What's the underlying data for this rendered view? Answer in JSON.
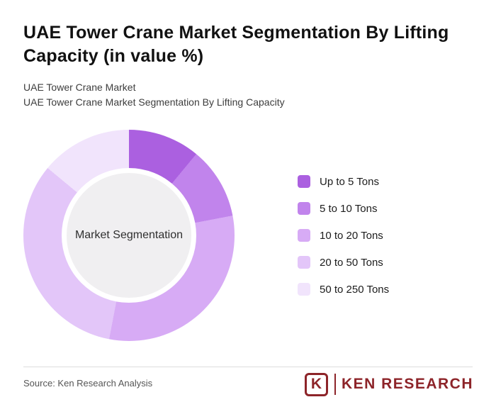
{
  "page": {
    "title": "UAE Tower Crane Market Segmentation By Lifting Capacity (in value %)",
    "subtitle1": "UAE Tower Crane Market",
    "subtitle2": "UAE Tower Crane Market Segmentation By Lifting Capacity",
    "source": "Source: Ken Research Analysis"
  },
  "chart_data": {
    "type": "pie",
    "variant": "donut",
    "title": "UAE Tower Crane Market Segmentation By Lifting Capacity (in value %)",
    "center_label": "Market Segmentation",
    "labels": [
      "Up to 5 Tons",
      "5 to 10 Tons",
      "10 to 20 Tons",
      "20 to 50 Tons",
      "50 to 250 Tons"
    ],
    "values": [
      11,
      11,
      31,
      33,
      14
    ],
    "unit": "value %",
    "colors": [
      "#ab60e0",
      "#c184ec",
      "#d7abf5",
      "#e3c6f9",
      "#f1e4fc"
    ],
    "start_angle_deg": 0,
    "direction": "clockwise",
    "legend_position": "right"
  },
  "logo": {
    "k_letter": "K",
    "text": "KEN RESEARCH",
    "color": "#8d2429"
  }
}
